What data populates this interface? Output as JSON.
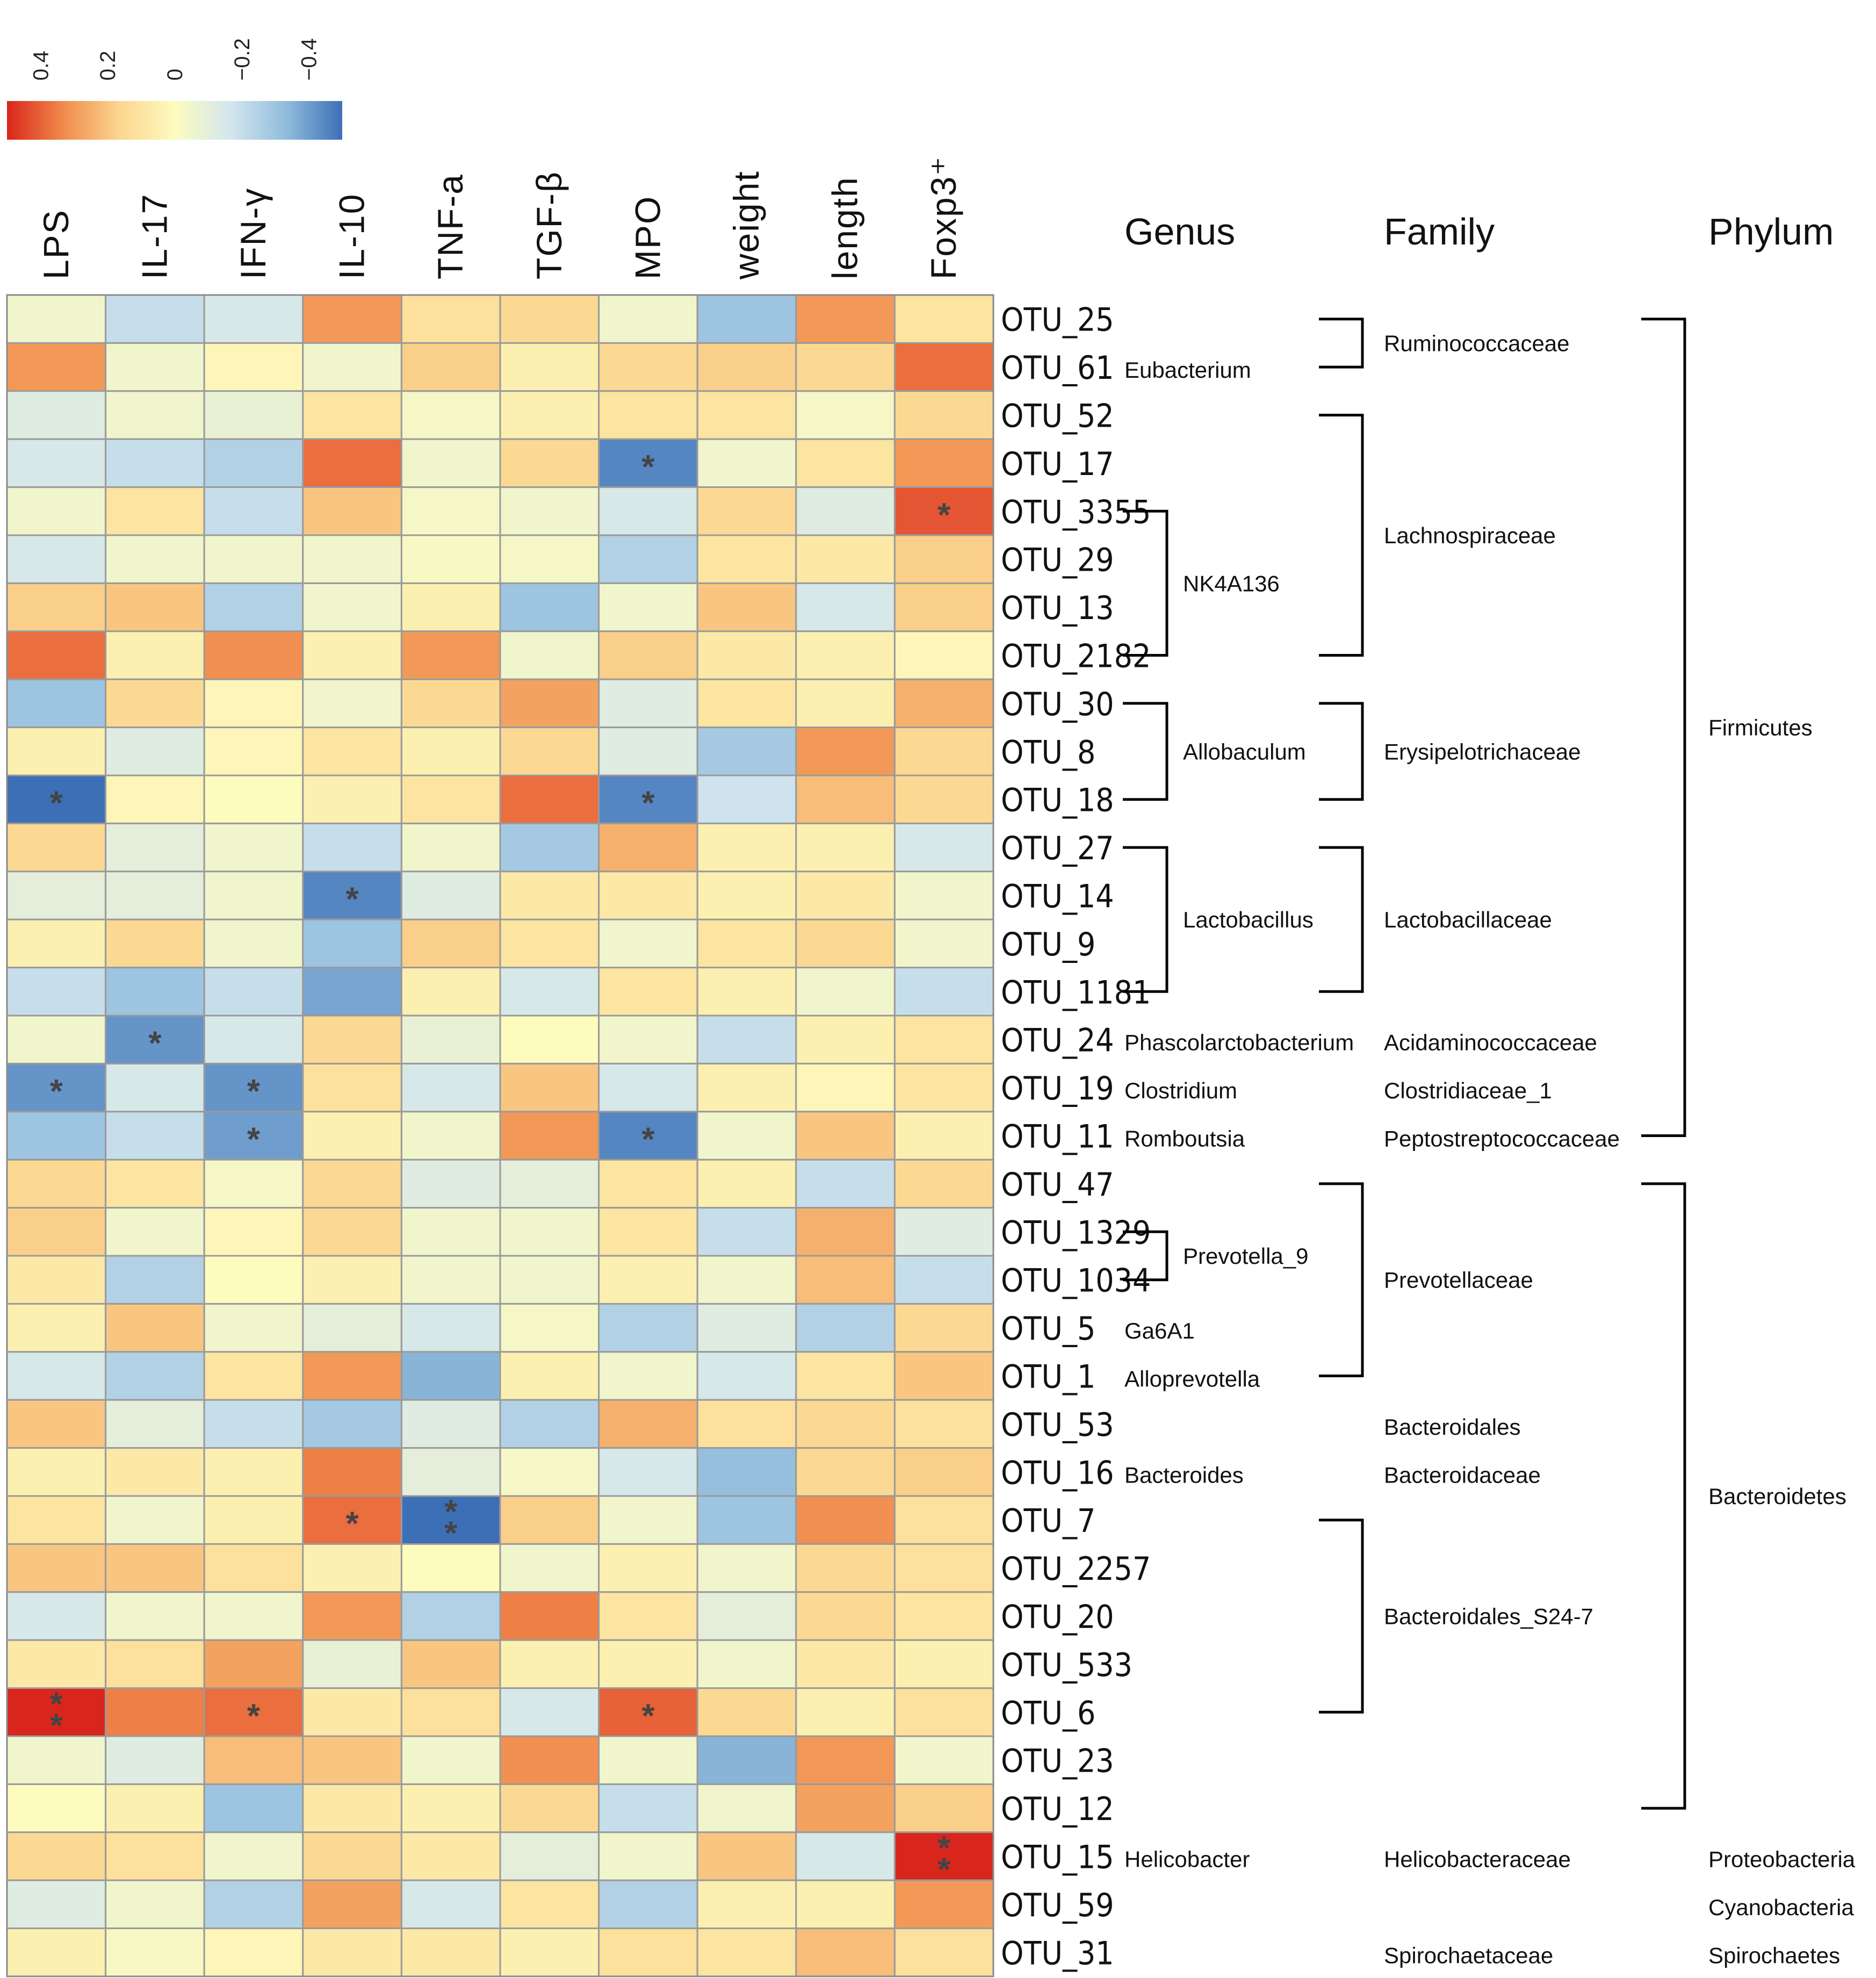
{
  "chart_data": {
    "type": "heatmap",
    "colorbar": {
      "ticks": [
        "0.4",
        "0.2",
        "0",
        "−0.2",
        "−0.4"
      ],
      "range": [
        0.5,
        -0.5
      ],
      "colors": [
        "#d9261c",
        "#f08a4b",
        "#fbd58e",
        "#fdfbbe",
        "#d3e6ee",
        "#90bcdc",
        "#3d6fb6"
      ]
    },
    "columns": [
      "LPS",
      "IL-17",
      "IFN-γ",
      "IL-10",
      "TNF-a",
      "TGF-β",
      "MPO",
      "weight",
      "length",
      "Foxp3⁺"
    ],
    "rows": [
      "OTU_25",
      "OTU_61",
      "OTU_52",
      "OTU_17",
      "OTU_3355",
      "OTU_29",
      "OTU_13",
      "OTU_2182",
      "OTU_30",
      "OTU_8",
      "OTU_18",
      "OTU_27",
      "OTU_14",
      "OTU_9",
      "OTU_1181",
      "OTU_24",
      "OTU_19",
      "OTU_11",
      "OTU_47",
      "OTU_1329",
      "OTU_1034",
      "OTU_5",
      "OTU_1",
      "OTU_53",
      "OTU_16",
      "OTU_7",
      "OTU_2257",
      "OTU_20",
      "OTU_533",
      "OTU_6",
      "OTU_23",
      "OTU_12",
      "OTU_15",
      "OTU_59",
      "OTU_31"
    ],
    "values": [
      [
        -0.05,
        -0.2,
        -0.15,
        0.3,
        0.12,
        0.15,
        -0.05,
        -0.3,
        0.3,
        0.1
      ],
      [
        0.3,
        -0.05,
        0.02,
        -0.05,
        0.18,
        0.05,
        0.15,
        0.18,
        0.15,
        0.38
      ],
      [
        -0.12,
        -0.05,
        -0.08,
        0.1,
        -0.03,
        0.05,
        0.1,
        0.1,
        -0.03,
        0.15
      ],
      [
        -0.15,
        -0.2,
        -0.25,
        0.38,
        -0.05,
        0.15,
        -0.45,
        -0.05,
        0.1,
        0.3
      ],
      [
        -0.05,
        0.1,
        -0.2,
        0.2,
        -0.03,
        -0.05,
        -0.15,
        0.15,
        -0.12,
        0.42
      ],
      [
        -0.15,
        -0.05,
        -0.05,
        -0.05,
        -0.02,
        -0.03,
        -0.25,
        0.1,
        0.08,
        0.18
      ],
      [
        0.18,
        0.2,
        -0.25,
        -0.05,
        0.05,
        -0.3,
        -0.05,
        0.2,
        -0.15,
        0.18
      ],
      [
        0.38,
        0.05,
        0.32,
        0.05,
        0.3,
        -0.05,
        0.18,
        0.08,
        0.05,
        0.02
      ],
      [
        -0.3,
        0.15,
        0.02,
        -0.05,
        0.15,
        0.28,
        -0.12,
        0.1,
        0.05,
        0.25
      ],
      [
        0.05,
        -0.12,
        0.02,
        0.1,
        0.05,
        0.15,
        -0.12,
        -0.28,
        0.3,
        0.15
      ],
      [
        -0.5,
        0.02,
        0.0,
        0.05,
        0.1,
        0.38,
        -0.45,
        -0.18,
        0.22,
        0.15
      ],
      [
        0.15,
        -0.1,
        -0.05,
        -0.2,
        -0.05,
        -0.28,
        0.25,
        0.05,
        0.05,
        -0.15
      ],
      [
        -0.1,
        -0.1,
        -0.05,
        -0.45,
        -0.12,
        0.08,
        0.08,
        0.05,
        0.08,
        -0.05
      ],
      [
        0.05,
        0.15,
        -0.05,
        -0.3,
        0.18,
        0.1,
        -0.05,
        0.1,
        0.15,
        -0.05
      ],
      [
        -0.2,
        -0.3,
        -0.2,
        -0.38,
        0.05,
        -0.15,
        0.1,
        0.05,
        -0.05,
        -0.2
      ],
      [
        -0.05,
        -0.42,
        -0.15,
        0.15,
        -0.08,
        0.0,
        -0.05,
        -0.2,
        0.05,
        0.1
      ],
      [
        -0.42,
        -0.15,
        -0.42,
        0.12,
        -0.15,
        0.2,
        -0.15,
        0.05,
        0.02,
        0.1
      ],
      [
        -0.3,
        -0.2,
        -0.4,
        0.05,
        -0.05,
        0.3,
        -0.45,
        -0.05,
        0.2,
        0.05
      ],
      [
        0.15,
        0.1,
        -0.03,
        0.15,
        -0.12,
        -0.1,
        0.1,
        0.05,
        -0.2,
        0.15
      ],
      [
        0.18,
        -0.05,
        0.02,
        0.15,
        -0.05,
        -0.05,
        0.1,
        -0.2,
        0.25,
        -0.12
      ],
      [
        0.08,
        -0.25,
        0.0,
        0.05,
        -0.05,
        -0.05,
        0.05,
        -0.05,
        0.22,
        -0.2
      ],
      [
        0.05,
        0.2,
        -0.05,
        -0.1,
        -0.15,
        -0.03,
        -0.25,
        -0.12,
        -0.25,
        0.15
      ],
      [
        -0.15,
        -0.25,
        0.1,
        0.3,
        -0.35,
        0.05,
        -0.05,
        -0.15,
        0.1,
        0.2
      ],
      [
        0.2,
        -0.1,
        -0.2,
        -0.28,
        -0.12,
        -0.25,
        0.25,
        0.12,
        0.15,
        0.12
      ],
      [
        0.05,
        0.08,
        0.05,
        0.35,
        -0.1,
        -0.03,
        -0.15,
        -0.32,
        0.15,
        0.18
      ],
      [
        0.1,
        -0.05,
        0.05,
        0.38,
        -0.55,
        0.18,
        -0.05,
        -0.3,
        0.32,
        0.12
      ],
      [
        0.2,
        0.2,
        0.12,
        0.05,
        0.0,
        -0.05,
        0.05,
        -0.05,
        0.15,
        0.12
      ],
      [
        -0.15,
        -0.05,
        -0.05,
        0.3,
        -0.25,
        0.35,
        0.1,
        -0.1,
        0.15,
        0.1
      ],
      [
        0.08,
        0.12,
        0.28,
        -0.08,
        0.2,
        0.05,
        0.05,
        -0.05,
        0.08,
        0.05
      ],
      [
        0.55,
        0.35,
        0.38,
        0.08,
        0.12,
        -0.15,
        0.4,
        0.15,
        0.05,
        0.12
      ],
      [
        -0.05,
        -0.12,
        0.22,
        0.2,
        -0.05,
        0.32,
        -0.05,
        -0.35,
        0.3,
        -0.05
      ],
      [
        0.0,
        0.05,
        -0.3,
        0.08,
        0.05,
        0.15,
        -0.2,
        -0.05,
        0.28,
        0.18
      ],
      [
        0.15,
        0.12,
        -0.05,
        0.15,
        0.08,
        -0.1,
        -0.05,
        0.2,
        -0.15,
        0.5
      ],
      [
        -0.12,
        -0.05,
        -0.25,
        0.28,
        -0.15,
        0.1,
        -0.25,
        0.05,
        0.05,
        0.3
      ],
      [
        0.05,
        -0.02,
        0.02,
        0.08,
        0.08,
        0.05,
        0.12,
        0.1,
        0.22,
        0.12
      ]
    ],
    "significance": [
      [
        3,
        6,
        "*"
      ],
      [
        4,
        9,
        "*"
      ],
      [
        10,
        0,
        "*"
      ],
      [
        10,
        6,
        "*"
      ],
      [
        12,
        3,
        "*"
      ],
      [
        15,
        1,
        "*"
      ],
      [
        16,
        0,
        "*"
      ],
      [
        16,
        2,
        "*"
      ],
      [
        17,
        2,
        "*"
      ],
      [
        17,
        6,
        "*"
      ],
      [
        25,
        3,
        "*"
      ],
      [
        25,
        4,
        "**"
      ],
      [
        29,
        0,
        "**"
      ],
      [
        29,
        2,
        "*"
      ],
      [
        29,
        6,
        "*"
      ],
      [
        32,
        9,
        "**"
      ]
    ]
  },
  "taxonomy": {
    "headers": {
      "genus": "Genus",
      "family": "Family",
      "phylum": "Phylum"
    },
    "genus": [
      {
        "label": "Eubacterium",
        "rows": [
          1,
          1
        ]
      },
      {
        "label": "NK4A136",
        "rows": [
          4,
          7
        ]
      },
      {
        "label": "Allobaculum",
        "rows": [
          8,
          10
        ]
      },
      {
        "label": "Lactobacillus",
        "rows": [
          11,
          14
        ]
      },
      {
        "label": "Phascolarctobacterium",
        "rows": [
          15,
          15
        ]
      },
      {
        "label": "Clostridium",
        "rows": [
          16,
          16
        ]
      },
      {
        "label": "Romboutsia",
        "rows": [
          17,
          17
        ]
      },
      {
        "label": "Prevotella_9",
        "rows": [
          19,
          20
        ]
      },
      {
        "label": "Ga6A1",
        "rows": [
          21,
          21
        ]
      },
      {
        "label": "Alloprevotella",
        "rows": [
          22,
          22
        ]
      },
      {
        "label": "Bacteroides",
        "rows": [
          24,
          24
        ]
      },
      {
        "label": "Helicobacter",
        "rows": [
          32,
          32
        ]
      }
    ],
    "family": [
      {
        "label": "Ruminococcaceae",
        "rows": [
          0,
          1
        ]
      },
      {
        "label": "Lachnospiraceae",
        "rows": [
          2,
          7
        ]
      },
      {
        "label": "Erysipelotrichaceae",
        "rows": [
          8,
          10
        ]
      },
      {
        "label": "Lactobacillaceae",
        "rows": [
          11,
          14
        ]
      },
      {
        "label": "Acidaminococcaceae",
        "rows": [
          15,
          15
        ]
      },
      {
        "label": "Clostridiaceae_1",
        "rows": [
          16,
          16
        ]
      },
      {
        "label": "Peptostreptococcaceae",
        "rows": [
          17,
          17
        ]
      },
      {
        "label": "Prevotellaceae",
        "rows": [
          18,
          22
        ]
      },
      {
        "label": "Bacteroidales",
        "rows": [
          23,
          23
        ]
      },
      {
        "label": "Bacteroidaceae",
        "rows": [
          24,
          24
        ]
      },
      {
        "label": "Bacteroidales_S24-7",
        "rows": [
          25,
          29
        ]
      },
      {
        "label": "Helicobacteraceae",
        "rows": [
          32,
          32
        ]
      },
      {
        "label": "Spirochaetaceae",
        "rows": [
          34,
          34
        ]
      }
    ],
    "phylum": [
      {
        "label": "Firmicutes",
        "rows": [
          0,
          17
        ]
      },
      {
        "label": "Bacteroidetes",
        "rows": [
          18,
          31
        ]
      },
      {
        "label": "Proteobacteria",
        "rows": [
          32,
          32
        ]
      },
      {
        "label": "Cyanobacteria",
        "rows": [
          33,
          33
        ]
      },
      {
        "label": "Spirochaetes",
        "rows": [
          34,
          34
        ]
      }
    ]
  }
}
